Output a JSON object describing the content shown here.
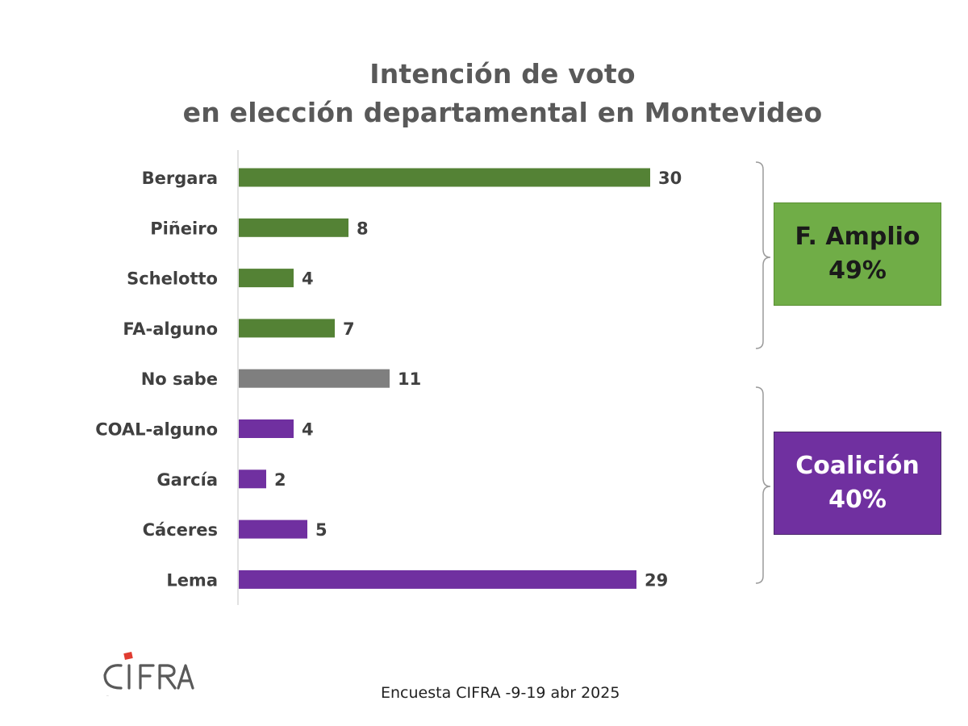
{
  "title": {
    "line1": "Intención de voto",
    "line2": "en elección departamental en Montevideo"
  },
  "chart_data": {
    "type": "bar",
    "orientation": "horizontal",
    "categories": [
      "Bergara",
      "Piñeiro",
      "Schelotto",
      "FA-alguno",
      "No sabe",
      "COAL-alguno",
      "García",
      "Cáceres",
      "Lema"
    ],
    "values": [
      30,
      8,
      4,
      7,
      11,
      4,
      2,
      5,
      29
    ],
    "bar_colors": [
      "#548235",
      "#548235",
      "#548235",
      "#548235",
      "#7f7f7f",
      "#7030a0",
      "#7030a0",
      "#7030a0",
      "#7030a0"
    ],
    "title": "Intención de voto en elección departamental en Montevideo",
    "xlabel": "",
    "ylabel": "",
    "xlim": [
      0,
      30
    ],
    "grid": false,
    "data_labels": true
  },
  "groups": {
    "fa": {
      "line1": "F. Amplio",
      "line2": "49%",
      "color": "#70ad47"
    },
    "coal": {
      "line1": "Coalición",
      "line2": "40%",
      "color": "#7030a0"
    }
  },
  "footnote": "Encuesta CIFRA -9-19 abr 2025",
  "logo": {
    "text": "CIFRA",
    "accent": "#e03c31",
    "color": "#595959"
  }
}
